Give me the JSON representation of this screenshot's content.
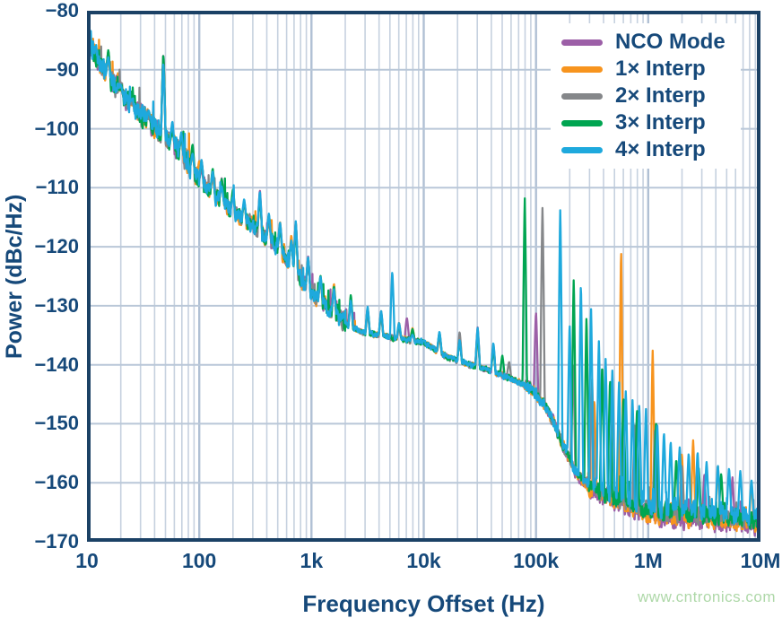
{
  "page": {
    "watermark": "www.cntronics.com"
  },
  "chart_data": {
    "type": "line",
    "title": "",
    "xlabel": "Frequency Offset (Hz)",
    "ylabel": "Power (dBc/Hz)",
    "x_scale": "log",
    "xlim_hz": [
      10,
      10000000
    ],
    "ylim": [
      -170,
      -80
    ],
    "grid": "on",
    "legend_position": "top-right-inside",
    "x_ticks": [
      {
        "hz": 10,
        "label": "10"
      },
      {
        "hz": 100,
        "label": "100"
      },
      {
        "hz": 1000,
        "label": "1k"
      },
      {
        "hz": 10000,
        "label": "10k"
      },
      {
        "hz": 100000,
        "label": "100k"
      },
      {
        "hz": 1000000,
        "label": "1M"
      },
      {
        "hz": 10000000,
        "label": "10M"
      }
    ],
    "y_ticks": [
      {
        "db": -80,
        "label": "−80"
      },
      {
        "db": -90,
        "label": "−90"
      },
      {
        "db": -100,
        "label": "−100"
      },
      {
        "db": -110,
        "label": "−110"
      },
      {
        "db": -120,
        "label": "−120"
      },
      {
        "db": -130,
        "label": "−130"
      },
      {
        "db": -140,
        "label": "−140"
      },
      {
        "db": -150,
        "label": "−150"
      },
      {
        "db": -160,
        "label": "−160"
      },
      {
        "db": -170,
        "label": "−170"
      }
    ],
    "colors": {
      "text": "#16497a",
      "frame": "#1b4165",
      "grid_major": "#b0c0d4",
      "grid_minor": "#c6d1df",
      "grid_horizontal": "#b9c7d8",
      "watermark": "#aed8a8"
    },
    "noise_db": 1.0,
    "baseline_dbchz_log10hz": [
      [
        1.0,
        -84.3
      ],
      [
        1.1,
        -88.5
      ],
      [
        1.2,
        -91.5
      ],
      [
        1.35,
        -95.0
      ],
      [
        1.5,
        -98.0
      ],
      [
        1.7,
        -101.5
      ],
      [
        1.85,
        -104.5
      ],
      [
        2.0,
        -108.8
      ],
      [
        2.15,
        -111.5
      ],
      [
        2.3,
        -114.0
      ],
      [
        2.5,
        -116.8
      ],
      [
        2.7,
        -120.0
      ],
      [
        2.85,
        -124.0
      ],
      [
        3.0,
        -128.0
      ],
      [
        3.15,
        -130.5
      ],
      [
        3.3,
        -133.0
      ],
      [
        3.45,
        -134.5
      ],
      [
        3.7,
        -135.3
      ],
      [
        4.0,
        -136.2
      ],
      [
        4.2,
        -138.6
      ],
      [
        4.4,
        -139.9
      ],
      [
        4.6,
        -141.0
      ],
      [
        4.8,
        -142.5
      ],
      [
        4.95,
        -144.0
      ],
      [
        5.05,
        -146.0
      ],
      [
        5.15,
        -149.5
      ],
      [
        5.25,
        -154.0
      ],
      [
        5.35,
        -158.0
      ],
      [
        5.45,
        -160.0
      ],
      [
        5.6,
        -161.8
      ],
      [
        5.8,
        -163.0
      ],
      [
        6.0,
        -164.3
      ],
      [
        6.3,
        -165.0
      ],
      [
        6.6,
        -165.4
      ],
      [
        7.0,
        -166.2
      ]
    ],
    "shared_spurs_log10hz_db": [
      [
        1.19,
        -87.5
      ],
      [
        1.3,
        -93.0
      ],
      [
        1.4,
        -95.5
      ],
      [
        1.55,
        -97.5
      ],
      [
        1.68,
        -88.0
      ],
      [
        1.76,
        -99.5
      ],
      [
        1.84,
        -101.5
      ],
      [
        1.94,
        -103.5
      ],
      [
        2.02,
        -106.0
      ],
      [
        2.12,
        -107.5
      ],
      [
        2.2,
        -109.0
      ],
      [
        2.3,
        -110.8
      ],
      [
        2.4,
        -112.0
      ],
      [
        2.54,
        -111.2
      ],
      [
        2.62,
        -115.0
      ],
      [
        2.72,
        -116.5
      ],
      [
        2.82,
        -118.5
      ],
      [
        2.86,
        -116.3
      ],
      [
        2.97,
        -122.3
      ],
      [
        3.08,
        -125.0
      ],
      [
        3.2,
        -126.5
      ],
      [
        3.35,
        -129.0
      ],
      [
        3.5,
        -130.5
      ],
      [
        3.62,
        -131.5
      ],
      [
        3.78,
        -133.0
      ],
      [
        3.9,
        -134.0
      ],
      [
        4.14,
        -134.8
      ],
      [
        4.32,
        -135.0
      ],
      [
        4.48,
        -134.3
      ],
      [
        4.62,
        -136.8
      ]
    ],
    "series": [
      {
        "name": "NCO Mode",
        "color": "#9c5fa7",
        "hf_offset_db": -1.4,
        "spurs_log10hz_db": [
          [
            1.53,
            -97.3
          ],
          [
            2.32,
            -113.5
          ],
          [
            2.86,
            -115.8
          ],
          [
            2.97,
            -121.6
          ],
          [
            3.85,
            -132.0
          ],
          [
            5.0,
            -131.0
          ],
          [
            6.5,
            -158.5
          ],
          [
            6.75,
            -159.0
          ]
        ]
      },
      {
        "name": "1× Interp",
        "color": "#f7941e",
        "hf_offset_db": -0.9,
        "spurs_log10hz_db": [
          [
            2.0,
            -105.4
          ],
          [
            5.52,
            -146.0
          ],
          [
            5.758,
            -120.4
          ],
          [
            6.04,
            -137.6
          ],
          [
            6.3,
            -155.0
          ],
          [
            6.4,
            -152.8
          ],
          [
            6.62,
            -157.0
          ],
          [
            6.92,
            -159.8
          ]
        ]
      },
      {
        "name": "2× Interp",
        "color": "#85878a",
        "hf_offset_db": -0.3,
        "spurs_log10hz_db": [
          [
            4.76,
            -139.5
          ],
          [
            5.058,
            -113.4
          ],
          [
            5.33,
            -140.0
          ],
          [
            5.5,
            -142.5
          ],
          [
            5.68,
            -144.5
          ],
          [
            5.88,
            -150.0
          ],
          [
            6.06,
            -150.9
          ],
          [
            6.3,
            -157.0
          ]
        ]
      },
      {
        "name": "3× Interp",
        "color": "#00a551",
        "hf_offset_db": -0.2,
        "spurs_log10hz_db": [
          [
            1.0,
            -84.0
          ],
          [
            1.68,
            -87.4
          ],
          [
            4.7,
            -138.4
          ],
          [
            4.9,
            -111.8
          ],
          [
            5.336,
            -125.6
          ],
          [
            5.45,
            -132.0
          ],
          [
            5.59,
            -140.0
          ],
          [
            5.66,
            -142.5
          ],
          [
            5.78,
            -145.5
          ],
          [
            5.9,
            -147.5
          ],
          [
            6.07,
            -149.5
          ],
          [
            6.25,
            -156.0
          ],
          [
            6.45,
            -157.5
          ],
          [
            6.65,
            -158.5
          ]
        ]
      },
      {
        "name": "4× Interp",
        "color": "#1ea9dd",
        "hf_offset_db": 0.4,
        "spurs_log10hz_db": [
          [
            3.72,
            -124.2
          ],
          [
            5.216,
            -113.7
          ],
          [
            5.3,
            -133.0
          ],
          [
            5.4,
            -126.3
          ],
          [
            5.49,
            -130.3
          ],
          [
            5.56,
            -136.0
          ],
          [
            5.62,
            -139.0
          ],
          [
            5.68,
            -141.0
          ],
          [
            5.74,
            -143.0
          ],
          [
            5.8,
            -144.5
          ],
          [
            5.86,
            -146.0
          ],
          [
            5.92,
            -147.0
          ],
          [
            5.98,
            -147.5
          ],
          [
            6.08,
            -150.0
          ],
          [
            6.14,
            -151.5
          ],
          [
            6.2,
            -153.0
          ],
          [
            6.28,
            -154.0
          ],
          [
            6.36,
            -155.0
          ],
          [
            6.44,
            -154.8
          ],
          [
            6.52,
            -156.5
          ],
          [
            6.62,
            -157.0
          ],
          [
            6.72,
            -157.5
          ],
          [
            6.82,
            -158.0
          ],
          [
            6.92,
            -159.5
          ]
        ]
      }
    ]
  }
}
